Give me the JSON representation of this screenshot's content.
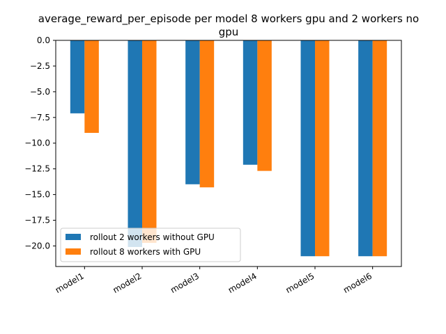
{
  "chart_data": {
    "type": "bar",
    "title": "average_reward_per_episode per model 8 workers gpu and 2 workers no gpu",
    "title_lines": [
      "average_reward_per_episode per model 8 workers gpu and 2 workers no",
      "gpu"
    ],
    "xlabel": "",
    "ylabel": "",
    "categories": [
      "model1",
      "model2",
      "model3",
      "model4",
      "model5",
      "model6"
    ],
    "series": [
      {
        "name": "rollout 2 workers without GPU",
        "color": "#1f77b4",
        "values": [
          -7.1,
          -20.1,
          -14.0,
          -12.1,
          -21.0,
          -21.0
        ]
      },
      {
        "name": "rollout 8 workers with GPU",
        "color": "#ff7f0e",
        "values": [
          -9.0,
          -19.7,
          -14.3,
          -12.7,
          -21.0,
          -21.0
        ]
      }
    ],
    "ylim": [
      -22.0,
      0.0
    ],
    "yticks": [
      0.0,
      -2.5,
      -5.0,
      -7.5,
      -10.0,
      -12.5,
      -15.0,
      -17.5,
      -20.0
    ],
    "ytick_labels": [
      "0.0",
      "−2.5",
      "−5.0",
      "−7.5",
      "−10.0",
      "−12.5",
      "−15.0",
      "−17.5",
      "−20.0"
    ],
    "legend_position": "lower-left",
    "grid": false
  }
}
